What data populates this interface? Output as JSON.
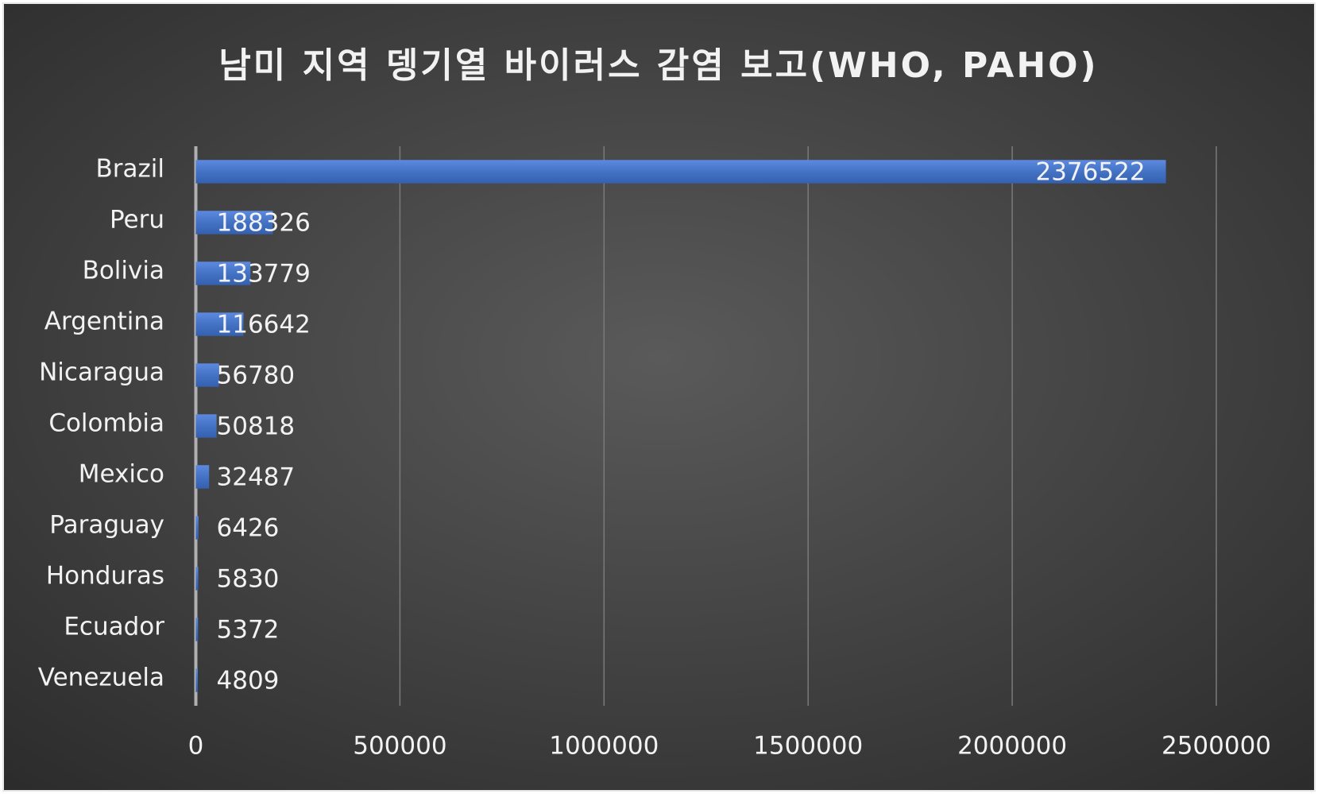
{
  "chart_data": {
    "type": "bar",
    "orientation": "horizontal",
    "title": "남미 지역 뎅기열 바이러스 감염 보고(WHO, PAHO)",
    "categories": [
      "Brazil",
      "Peru",
      "Bolivia",
      "Argentina",
      "Nicaragua",
      "Colombia",
      "Mexico",
      "Paraguay",
      "Honduras",
      "Ecuador",
      "Venezuela"
    ],
    "values": [
      2376522,
      188326,
      133779,
      116642,
      56780,
      50818,
      32487,
      6426,
      5830,
      5372,
      4809
    ],
    "color": "#4472c4",
    "xlim": [
      0,
      2500000
    ],
    "xticks": [
      0,
      500000,
      1000000,
      1500000,
      2000000,
      2500000
    ],
    "grid": true
  }
}
